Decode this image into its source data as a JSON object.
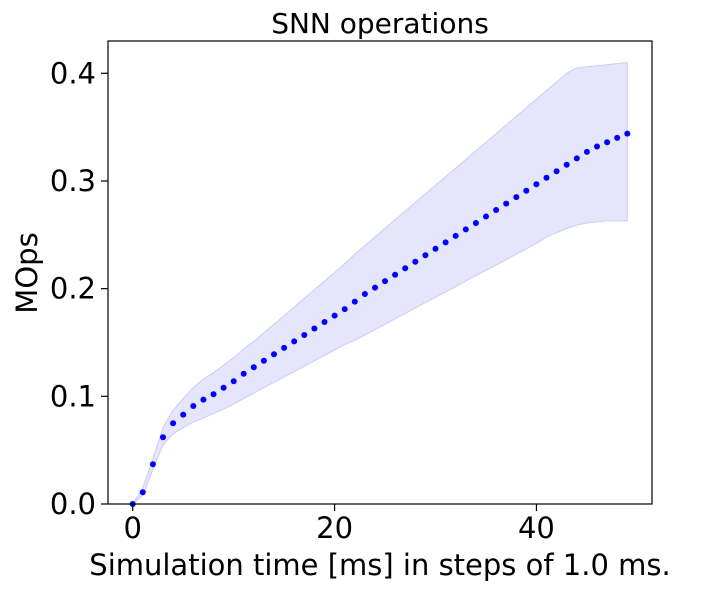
{
  "chart_data": {
    "type": "scatter",
    "title": "SNN operations",
    "xlabel": "Simulation time [ms] in steps of 1.0 ms.",
    "ylabel": "MOps",
    "xlim": [
      -2.45,
      51.45
    ],
    "ylim": [
      0.0,
      0.43
    ],
    "xticks": [
      0,
      20,
      40
    ],
    "xtick_labels": [
      "0",
      "20",
      "40"
    ],
    "yticks": [
      0.0,
      0.1,
      0.2,
      0.3,
      0.4
    ],
    "ytick_labels": [
      "0.0",
      "0.1",
      "0.2",
      "0.3",
      "0.4"
    ],
    "grid": false,
    "colors": {
      "points": "#0000ff",
      "band_fill": "#e5e5fc",
      "band_edge": "#ccccf5"
    },
    "series": [
      {
        "x": [
          0,
          1,
          2,
          3,
          4,
          5,
          6,
          7,
          8,
          9,
          10,
          11,
          12,
          13,
          14,
          15,
          16,
          17,
          18,
          19,
          20,
          21,
          22,
          23,
          24,
          25,
          26,
          27,
          28,
          29,
          30,
          31,
          32,
          33,
          34,
          35,
          36,
          37,
          38,
          39,
          40,
          41,
          42,
          43,
          44,
          45,
          46,
          47,
          48,
          49
        ],
        "y": [
          0.0,
          0.011,
          0.037,
          0.062,
          0.075,
          0.083,
          0.091,
          0.097,
          0.102,
          0.108,
          0.114,
          0.121,
          0.127,
          0.133,
          0.139,
          0.145,
          0.151,
          0.157,
          0.163,
          0.169,
          0.175,
          0.181,
          0.188,
          0.195,
          0.201,
          0.207,
          0.213,
          0.219,
          0.225,
          0.231,
          0.237,
          0.243,
          0.249,
          0.255,
          0.261,
          0.267,
          0.273,
          0.279,
          0.285,
          0.291,
          0.297,
          0.303,
          0.309,
          0.315,
          0.321,
          0.327,
          0.332,
          0.336,
          0.34,
          0.344
        ]
      }
    ],
    "band": {
      "x": [
        0,
        1,
        2,
        3,
        4,
        5,
        6,
        7,
        8,
        9,
        10,
        11,
        12,
        13,
        14,
        15,
        16,
        17,
        18,
        19,
        20,
        21,
        22,
        23,
        24,
        25,
        26,
        27,
        28,
        29,
        30,
        31,
        32,
        33,
        34,
        35,
        36,
        37,
        38,
        39,
        40,
        41,
        42,
        43,
        44,
        45,
        46,
        47,
        48,
        49
      ],
      "upper": [
        0.0,
        0.015,
        0.042,
        0.071,
        0.087,
        0.098,
        0.108,
        0.116,
        0.122,
        0.129,
        0.136,
        0.144,
        0.151,
        0.159,
        0.167,
        0.175,
        0.183,
        0.191,
        0.199,
        0.207,
        0.215,
        0.223,
        0.232,
        0.24,
        0.248,
        0.256,
        0.264,
        0.272,
        0.28,
        0.288,
        0.296,
        0.304,
        0.312,
        0.32,
        0.328,
        0.336,
        0.344,
        0.352,
        0.36,
        0.368,
        0.376,
        0.384,
        0.392,
        0.4,
        0.405,
        0.406,
        0.407,
        0.408,
        0.409,
        0.41
      ],
      "lower": [
        0.0,
        0.008,
        0.032,
        0.055,
        0.065,
        0.071,
        0.076,
        0.08,
        0.084,
        0.088,
        0.093,
        0.098,
        0.103,
        0.108,
        0.113,
        0.118,
        0.123,
        0.128,
        0.133,
        0.138,
        0.143,
        0.148,
        0.152,
        0.157,
        0.162,
        0.167,
        0.172,
        0.177,
        0.182,
        0.187,
        0.192,
        0.197,
        0.202,
        0.207,
        0.212,
        0.217,
        0.222,
        0.227,
        0.232,
        0.237,
        0.242,
        0.248,
        0.252,
        0.256,
        0.259,
        0.261,
        0.262,
        0.263,
        0.263,
        0.263
      ]
    }
  }
}
